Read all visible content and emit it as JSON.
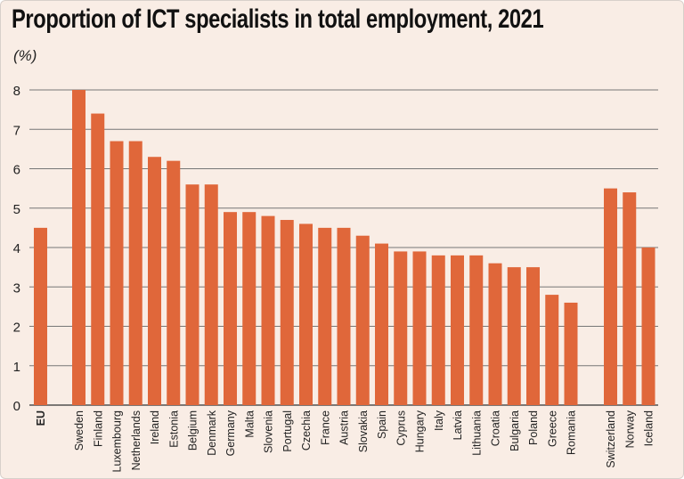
{
  "chart_data": {
    "type": "bar",
    "title": "Proportion of ICT specialists in total employment, 2021",
    "ylabel": "(%)",
    "xlabel": "",
    "ylim": [
      0,
      8
    ],
    "yticks": [
      0,
      1,
      2,
      3,
      4,
      5,
      6,
      7,
      8
    ],
    "grid": true,
    "bar_color": "#e0673a",
    "background_color": "#f9ede5",
    "groups": [
      {
        "categories": [
          "EU"
        ],
        "values": [
          4.5
        ],
        "bold_labels": true
      },
      {
        "categories": [
          "Sweden",
          "Finland",
          "Luxembourg",
          "Netherlands",
          "Ireland",
          "Estonia",
          "Belgium",
          "Denmark",
          "Germany",
          "Malta",
          "Slovenia",
          "Portugal",
          "Czechia",
          "France",
          "Austria",
          "Slovakia",
          "Spain",
          "Cyprus",
          "Hungary",
          "Italy",
          "Latvia",
          "Lithuania",
          "Croatia",
          "Bulgaria",
          "Poland",
          "Greece",
          "Romania"
        ],
        "values": [
          8.0,
          7.4,
          6.7,
          6.7,
          6.3,
          6.2,
          5.6,
          5.6,
          4.9,
          4.9,
          4.8,
          4.7,
          4.6,
          4.5,
          4.5,
          4.3,
          4.1,
          3.9,
          3.9,
          3.8,
          3.8,
          3.8,
          3.6,
          3.5,
          3.5,
          2.8,
          2.6
        ]
      },
      {
        "categories": [
          "Switzerland",
          "Norway",
          "Iceland"
        ],
        "values": [
          5.5,
          5.4,
          4.0
        ]
      }
    ]
  }
}
